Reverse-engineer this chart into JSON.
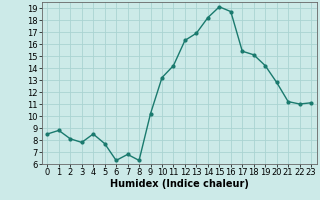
{
  "x": [
    0,
    1,
    2,
    3,
    4,
    5,
    6,
    7,
    8,
    9,
    10,
    11,
    12,
    13,
    14,
    15,
    16,
    17,
    18,
    19,
    20,
    21,
    22,
    23
  ],
  "y": [
    8.5,
    8.8,
    8.1,
    7.8,
    8.5,
    7.7,
    6.3,
    6.8,
    6.3,
    10.2,
    13.2,
    14.2,
    16.3,
    16.9,
    18.2,
    19.1,
    18.7,
    15.4,
    15.1,
    14.2,
    12.8,
    11.2,
    11.0,
    11.1
  ],
  "line_color": "#1a7a6e",
  "marker": "o",
  "marker_size": 2,
  "bg_color": "#cceae8",
  "grid_color": "#aad4d2",
  "xlabel": "Humidex (Indice chaleur)",
  "ylim": [
    6,
    19.5
  ],
  "yticks": [
    6,
    7,
    8,
    9,
    10,
    11,
    12,
    13,
    14,
    15,
    16,
    17,
    18,
    19
  ],
  "xticks": [
    0,
    1,
    2,
    3,
    4,
    5,
    6,
    7,
    8,
    9,
    10,
    11,
    12,
    13,
    14,
    15,
    16,
    17,
    18,
    19,
    20,
    21,
    22,
    23
  ],
  "xlabel_fontsize": 7,
  "tick_fontsize": 6,
  "line_width": 1.0
}
